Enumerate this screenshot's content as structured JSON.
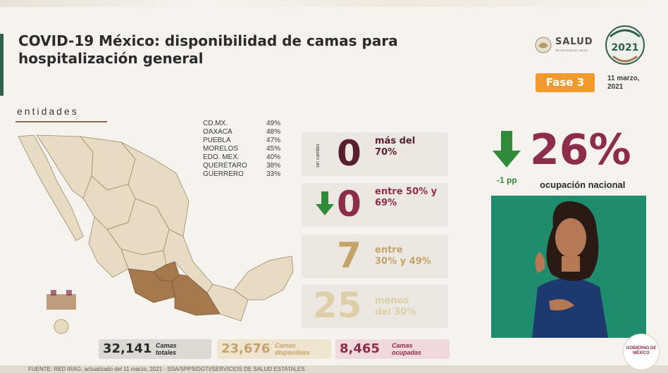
{
  "header": {
    "title_line1": "COVID-19 México: disponibilidad de camas para",
    "title_line2": "hospitalización general"
  },
  "logos": {
    "salud": "SALUD",
    "salud_sub": "SECRETARÍA DE SALUD",
    "year_seal": "2021",
    "gobierno": "GOBIERNO DE MÉXICO"
  },
  "phase": {
    "label": "Fase 3"
  },
  "date": {
    "line1": "11 marzo,",
    "line2": "2021"
  },
  "map_section": {
    "title": "entidades"
  },
  "states": [
    {
      "name": "CD.MX.",
      "pct": "49%"
    },
    {
      "name": "OAXACA",
      "pct": "48%"
    },
    {
      "name": "PUEBLA",
      "pct": "47%"
    },
    {
      "name": "MORELOS",
      "pct": "45%"
    },
    {
      "name": "EDO. MEX.",
      "pct": "40%"
    },
    {
      "name": "QUERÉTARO",
      "pct": "38%"
    },
    {
      "name": "GUERRERO",
      "pct": "33%"
    }
  ],
  "ranges": [
    {
      "value": "0",
      "label1": "más del",
      "label2": "70%",
      "note": "sin cambio"
    },
    {
      "value": "0",
      "label1": "entre 50% y",
      "label2": "69%"
    },
    {
      "value": "7",
      "label1": "entre",
      "label2": "30% y 49%"
    },
    {
      "value": "25",
      "label1": "menos",
      "label2": "del 30%"
    }
  ],
  "national": {
    "value": "26%",
    "change": "-1 pp",
    "label": "ocupación nacional"
  },
  "totals": {
    "total_value": "32,141",
    "total_label1": "Camas",
    "total_label2": "totales",
    "available_value": "23,676",
    "available_label1": "Camas",
    "available_label2": "disponibles",
    "occupied_value": "8,465",
    "occupied_label1": "Camas",
    "occupied_label2": "ocupadas"
  },
  "footer": {
    "source": "FUENTE: RED IRAG, actualizado del 11 marzo, 2021 · SSA/SPPS/DGTI/SERVICIOS DE SALUD ESTATALES"
  },
  "colors": {
    "title": "#2b2b2b",
    "range_high": "#5a1f2e",
    "range_mid": "#8c2d4b",
    "range_low": "#c4a46a",
    "range_lowest": "#ddcfa8",
    "arrow_green": "#2f8a3a",
    "phase_orange": "#f39a2f",
    "map_base": "#e7dbc3",
    "map_highlight": "#a5784e"
  }
}
